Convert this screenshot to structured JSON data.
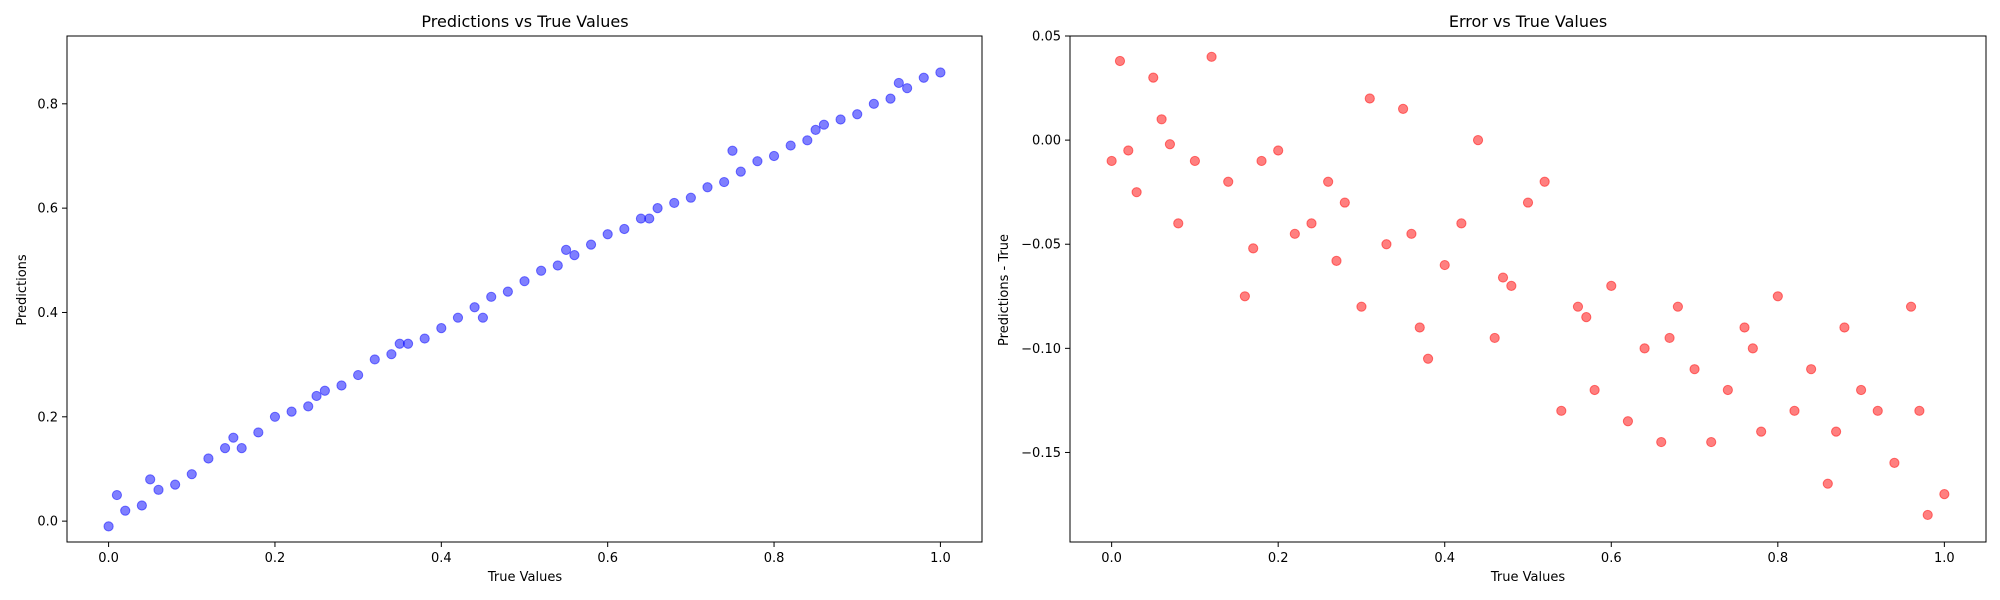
{
  "chart_data": [
    {
      "type": "scatter",
      "title": "Predictions vs True Values",
      "xlabel": "True Values",
      "ylabel": "Predictions",
      "xlim": [
        -0.05,
        1.05
      ],
      "ylim": [
        -0.04,
        0.93
      ],
      "xticks": [
        0.0,
        0.2,
        0.4,
        0.6,
        0.8,
        1.0
      ],
      "xtick_labels": [
        "0.0",
        "0.2",
        "0.4",
        "0.6",
        "0.8",
        "1.0"
      ],
      "yticks": [
        0.0,
        0.2,
        0.4,
        0.6,
        0.8
      ],
      "ytick_labels": [
        "0.0",
        "0.2",
        "0.4",
        "0.6",
        "0.8"
      ],
      "grid": false,
      "marker_color": "#0000ff",
      "marker_alpha": 0.5,
      "series": [
        {
          "x": [
            0.0,
            0.02,
            0.04,
            0.06,
            0.08,
            0.1,
            0.12,
            0.14,
            0.16,
            0.18,
            0.2,
            0.22,
            0.24,
            0.26,
            0.28,
            0.3,
            0.32,
            0.34,
            0.36,
            0.38,
            0.4,
            0.42,
            0.44,
            0.46,
            0.48,
            0.5,
            0.52,
            0.54,
            0.56,
            0.58,
            0.6,
            0.62,
            0.64,
            0.66,
            0.68,
            0.7,
            0.72,
            0.74,
            0.76,
            0.78,
            0.8,
            0.82,
            0.84,
            0.86,
            0.88,
            0.9,
            0.92,
            0.94,
            0.96,
            0.98,
            1.0,
            0.01,
            0.05,
            0.15,
            0.25,
            0.35,
            0.45,
            0.55,
            0.65,
            0.75,
            0.85,
            0.95
          ],
          "y": [
            -0.01,
            0.02,
            0.03,
            0.06,
            0.07,
            0.09,
            0.12,
            0.14,
            0.14,
            0.17,
            0.2,
            0.21,
            0.22,
            0.25,
            0.26,
            0.28,
            0.31,
            0.32,
            0.34,
            0.35,
            0.37,
            0.39,
            0.41,
            0.43,
            0.44,
            0.46,
            0.48,
            0.49,
            0.51,
            0.53,
            0.55,
            0.56,
            0.58,
            0.6,
            0.61,
            0.62,
            0.64,
            0.65,
            0.67,
            0.69,
            0.7,
            0.72,
            0.73,
            0.76,
            0.77,
            0.78,
            0.8,
            0.81,
            0.83,
            0.85,
            0.86,
            0.05,
            0.08,
            0.16,
            0.24,
            0.34,
            0.39,
            0.52,
            0.58,
            0.71,
            0.75,
            0.84
          ]
        }
      ]
    },
    {
      "type": "scatter",
      "title": "Error vs True Values",
      "xlabel": "True Values",
      "ylabel": "Predictions - True",
      "xlim": [
        -0.05,
        1.05
      ],
      "ylim": [
        -0.193,
        0.05
      ],
      "xticks": [
        0.0,
        0.2,
        0.4,
        0.6,
        0.8,
        1.0
      ],
      "xtick_labels": [
        "0.0",
        "0.2",
        "0.4",
        "0.6",
        "0.8",
        "1.0"
      ],
      "yticks": [
        0.05,
        0.0,
        -0.05,
        -0.1,
        -0.15
      ],
      "ytick_labels": [
        "0.05",
        "0.00",
        "−0.05",
        "−0.10",
        "−0.15"
      ],
      "grid": false,
      "marker_color": "#ff0000",
      "marker_alpha": 0.5,
      "series": [
        {
          "x": [
            0.0,
            0.01,
            0.02,
            0.03,
            0.05,
            0.06,
            0.08,
            0.1,
            0.12,
            0.14,
            0.16,
            0.18,
            0.2,
            0.22,
            0.24,
            0.26,
            0.28,
            0.3,
            0.31,
            0.33,
            0.35,
            0.36,
            0.38,
            0.4,
            0.42,
            0.44,
            0.46,
            0.48,
            0.5,
            0.52,
            0.54,
            0.56,
            0.58,
            0.6,
            0.62,
            0.64,
            0.66,
            0.68,
            0.7,
            0.72,
            0.74,
            0.76,
            0.78,
            0.8,
            0.82,
            0.84,
            0.86,
            0.88,
            0.9,
            0.92,
            0.94,
            0.96,
            0.98,
            1.0,
            0.07,
            0.17,
            0.27,
            0.37,
            0.47,
            0.57,
            0.67,
            0.77,
            0.87,
            0.97
          ],
          "y": [
            -0.01,
            0.038,
            -0.005,
            -0.025,
            0.03,
            0.01,
            -0.04,
            -0.01,
            0.04,
            -0.02,
            -0.075,
            -0.01,
            -0.005,
            -0.045,
            -0.04,
            -0.02,
            -0.03,
            -0.08,
            0.02,
            -0.05,
            0.015,
            -0.045,
            -0.105,
            -0.06,
            -0.04,
            0.0,
            -0.095,
            -0.07,
            -0.03,
            -0.02,
            -0.13,
            -0.08,
            -0.12,
            -0.07,
            -0.135,
            -0.1,
            -0.145,
            -0.08,
            -0.11,
            -0.145,
            -0.12,
            -0.09,
            -0.14,
            -0.075,
            -0.13,
            -0.11,
            -0.165,
            -0.09,
            -0.12,
            -0.13,
            -0.155,
            -0.08,
            -0.18,
            -0.17,
            -0.002,
            -0.052,
            -0.058,
            -0.09,
            -0.066,
            -0.085,
            -0.095,
            -0.1,
            -0.14,
            -0.13
          ]
        }
      ]
    }
  ]
}
